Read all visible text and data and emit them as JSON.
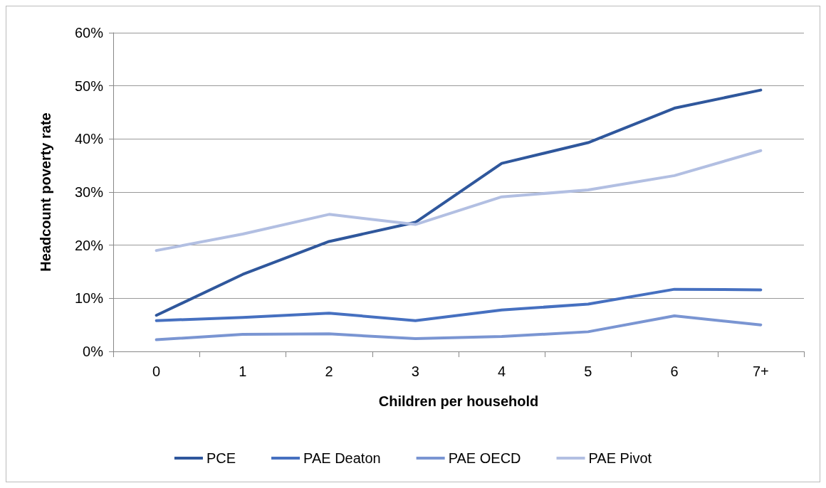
{
  "chart_data": {
    "type": "line",
    "xlabel": "Children per household",
    "ylabel": "Headcount poverty rate",
    "categories": [
      "0",
      "1",
      "2",
      "3",
      "4",
      "5",
      "6",
      "7+"
    ],
    "series": [
      {
        "name": "PCE",
        "color": "#2f579c",
        "values": [
          6.8,
          14.5,
          20.7,
          24.3,
          35.4,
          39.3,
          45.8,
          49.2
        ]
      },
      {
        "name": "PAE Deaton",
        "color": "#4670c0",
        "values": [
          5.8,
          6.4,
          7.2,
          5.8,
          7.8,
          8.9,
          11.7,
          11.6
        ]
      },
      {
        "name": "PAE OECD",
        "color": "#7a95d2",
        "values": [
          2.2,
          3.2,
          3.3,
          2.4,
          2.8,
          3.7,
          6.7,
          5.0
        ]
      },
      {
        "name": "PAE Pivot",
        "color": "#b2bfe2",
        "values": [
          19.0,
          22.1,
          25.8,
          23.9,
          29.1,
          30.4,
          33.1,
          37.8
        ]
      }
    ],
    "ylim": [
      0,
      60
    ],
    "yticks": [
      {
        "value": 0,
        "label": "0%"
      },
      {
        "value": 10,
        "label": "10%"
      },
      {
        "value": 20,
        "label": "20%"
      },
      {
        "value": 30,
        "label": "30%"
      },
      {
        "value": 40,
        "label": "40%"
      },
      {
        "value": 50,
        "label": "50%"
      },
      {
        "value": 60,
        "label": "60%"
      }
    ],
    "grid": "y",
    "legend": "bottom",
    "marker": "none",
    "line_style": "solid"
  }
}
